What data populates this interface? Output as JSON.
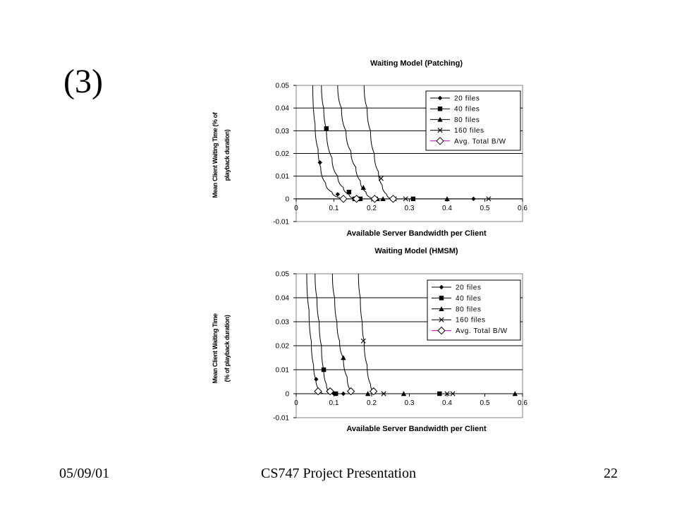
{
  "slide": {
    "label": "(3)",
    "footer_date": "05/09/01",
    "footer_title": "CS747 Project Presentation",
    "footer_page": "22"
  },
  "chart_data": [
    {
      "type": "line",
      "title": "Waiting Model (Patching)",
      "xlabel": "Available Server Bandwidth per Client",
      "ylabel": [
        "Mean Client Waiting Time (% of",
        "playback duration)"
      ],
      "xlim": [
        0,
        0.6
      ],
      "ylim": [
        -0.01,
        0.05
      ],
      "xticks": [
        "0",
        "0.1",
        "0.2",
        "0.3",
        "0.4",
        "0.5",
        "0.6"
      ],
      "yticks": [
        "-0.01",
        "0",
        "0.01",
        "0.02",
        "0.03",
        "0.04",
        "0.05"
      ],
      "grid": "horizontal",
      "legend_position": "top-right",
      "series": [
        {
          "name": "20 files",
          "marker": "diamond",
          "points": [
            [
              0.063,
              0.016
            ],
            [
              0.11,
              0.002
            ],
            [
              0.122,
              0
            ],
            [
              0.47,
              0
            ]
          ]
        },
        {
          "name": "40 files",
          "marker": "square",
          "points": [
            [
              0.08,
              0.031
            ],
            [
              0.14,
              0.003
            ],
            [
              0.155,
              0
            ],
            [
              0.17,
              0
            ],
            [
              0.31,
              0
            ]
          ]
        },
        {
          "name": "80 files",
          "marker": "triangle",
          "points": [
            [
              0.178,
              0.005
            ],
            [
              0.215,
              0
            ],
            [
              0.23,
              0
            ],
            [
              0.4,
              0
            ]
          ]
        },
        {
          "name": "160 files",
          "marker": "x",
          "points": [
            [
              0.225,
              0.009
            ],
            [
              0.26,
              0
            ],
            [
              0.29,
              0
            ],
            [
              0.51,
              0
            ]
          ]
        },
        {
          "name": "Avg. Total B/W",
          "marker": "open-diamond",
          "points": [
            [
              0.125,
              0
            ],
            [
              0.16,
              0
            ],
            [
              0.208,
              0
            ],
            [
              0.257,
              0
            ]
          ]
        }
      ],
      "curves": [
        [
          [
            0.044,
            0.05
          ],
          [
            0.05,
            0.033
          ],
          [
            0.058,
            0.022
          ],
          [
            0.065,
            0.014
          ],
          [
            0.078,
            0.007
          ],
          [
            0.095,
            0.003
          ],
          [
            0.115,
            0.0005
          ],
          [
            0.128,
            0
          ]
        ],
        [
          [
            0.067,
            0.05
          ],
          [
            0.073,
            0.04
          ],
          [
            0.08,
            0.031
          ],
          [
            0.095,
            0.018
          ],
          [
            0.11,
            0.01
          ],
          [
            0.125,
            0.005
          ],
          [
            0.14,
            0.002
          ],
          [
            0.155,
            0
          ]
        ],
        [
          [
            0.11,
            0.05
          ],
          [
            0.12,
            0.04
          ],
          [
            0.132,
            0.03
          ],
          [
            0.145,
            0.021
          ],
          [
            0.158,
            0.014
          ],
          [
            0.17,
            0.008
          ],
          [
            0.185,
            0.003
          ],
          [
            0.205,
            0
          ]
        ],
        [
          [
            0.18,
            0.05
          ],
          [
            0.188,
            0.04
          ],
          [
            0.197,
            0.03
          ],
          [
            0.207,
            0.02
          ],
          [
            0.218,
            0.012
          ],
          [
            0.228,
            0.006
          ],
          [
            0.24,
            0.002
          ],
          [
            0.252,
            0
          ]
        ]
      ]
    },
    {
      "type": "line",
      "title": "Waiting Model (HMSM)",
      "xlabel": "Available Server Bandwidth per Client",
      "ylabel": [
        "Mean Client Waiting Time",
        "(% of playback duration)"
      ],
      "xlim": [
        0,
        0.6
      ],
      "ylim": [
        -0.01,
        0.05
      ],
      "xticks": [
        "0",
        "0.1",
        "0.2",
        "0.3",
        "0.4",
        "0.5",
        "0.6"
      ],
      "yticks": [
        "-0.01",
        "0",
        "0.01",
        "0.02",
        "0.03",
        "0.04",
        "0.05"
      ],
      "grid": "horizontal",
      "legend_position": "top-right",
      "series": [
        {
          "name": "20 files",
          "marker": "diamond",
          "points": [
            [
              0.053,
              0.006
            ],
            [
              0.085,
              0.001
            ],
            [
              0.1,
              0
            ],
            [
              0.125,
              0
            ]
          ]
        },
        {
          "name": "40 files",
          "marker": "square",
          "points": [
            [
              0.073,
              0.01
            ],
            [
              0.09,
              0.001
            ],
            [
              0.105,
              0
            ],
            [
              0.38,
              0
            ]
          ]
        },
        {
          "name": "80 files",
          "marker": "triangle",
          "points": [
            [
              0.125,
              0.015
            ],
            [
              0.19,
              0
            ],
            [
              0.285,
              0
            ],
            [
              0.58,
              0
            ]
          ]
        },
        {
          "name": "160 files",
          "marker": "x",
          "points": [
            [
              0.178,
              0.022
            ],
            [
              0.232,
              0
            ],
            [
              0.4,
              0
            ],
            [
              0.415,
              0
            ]
          ]
        },
        {
          "name": "Avg. Total B/W",
          "marker": "open-diamond",
          "points": [
            [
              0.058,
              0.001
            ],
            [
              0.09,
              0.001
            ],
            [
              0.145,
              0.001
            ],
            [
              0.205,
              0.001
            ]
          ]
        }
      ],
      "curves": [
        [
          [
            0.028,
            0.05
          ],
          [
            0.034,
            0.035
          ],
          [
            0.04,
            0.022
          ],
          [
            0.046,
            0.012
          ],
          [
            0.052,
            0.006
          ],
          [
            0.06,
            0.002
          ],
          [
            0.072,
            0
          ]
        ],
        [
          [
            0.05,
            0.05
          ],
          [
            0.055,
            0.04
          ],
          [
            0.061,
            0.03
          ],
          [
            0.067,
            0.02
          ],
          [
            0.073,
            0.01
          ],
          [
            0.08,
            0.004
          ],
          [
            0.092,
            0
          ]
        ],
        [
          [
            0.096,
            0.05
          ],
          [
            0.102,
            0.04
          ],
          [
            0.108,
            0.03
          ],
          [
            0.115,
            0.022
          ],
          [
            0.125,
            0.015
          ],
          [
            0.135,
            0.007
          ],
          [
            0.15,
            0
          ]
        ],
        [
          [
            0.165,
            0.05
          ],
          [
            0.17,
            0.04
          ],
          [
            0.175,
            0.03
          ],
          [
            0.18,
            0.022
          ],
          [
            0.188,
            0.012
          ],
          [
            0.197,
            0.004
          ],
          [
            0.21,
            0
          ]
        ]
      ]
    }
  ]
}
